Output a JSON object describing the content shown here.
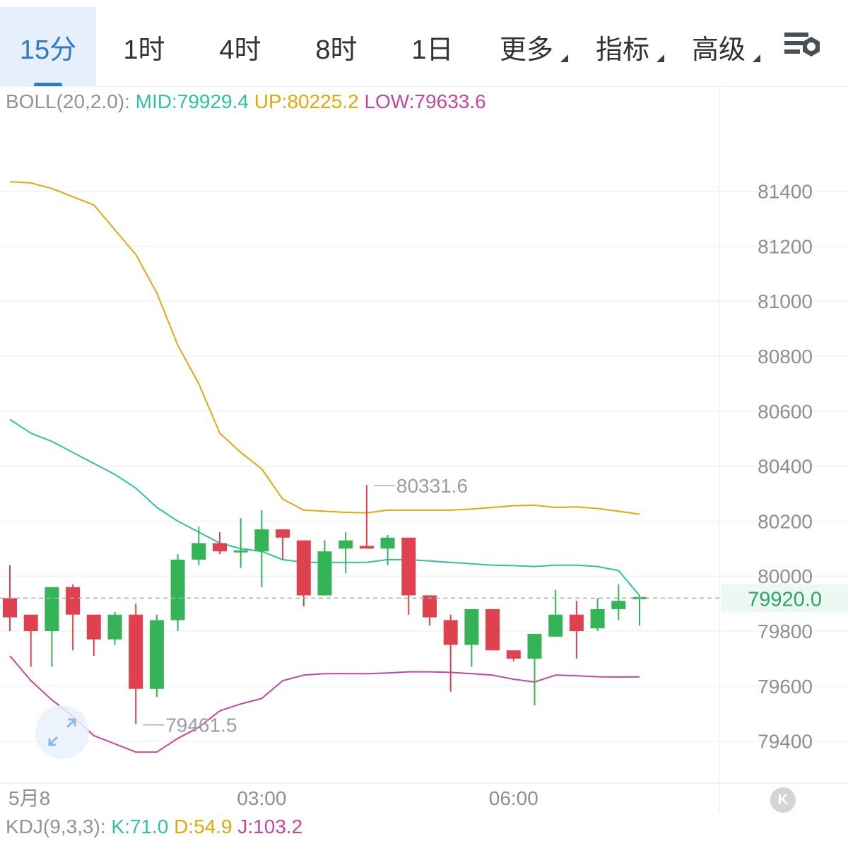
{
  "tabs": [
    {
      "label": "15分",
      "active": true
    },
    {
      "label": "1时",
      "active": false
    },
    {
      "label": "4时",
      "active": false
    },
    {
      "label": "8时",
      "active": false
    },
    {
      "label": "1日",
      "active": false
    },
    {
      "label": "更多",
      "active": false,
      "dropdown": true
    },
    {
      "label": "指标",
      "active": false,
      "dropdown": true
    },
    {
      "label": "高级",
      "active": false,
      "dropdown": true
    }
  ],
  "settings_icon": "chart-settings-icon",
  "boll_legend": {
    "name": "BOLL(20,2.0):",
    "mid": "MID:79929.4",
    "up": "UP:80225.2",
    "low": "LOW:79633.6"
  },
  "kdj_legend": {
    "name": "KDJ(9,3,3):",
    "k": "K:71.0",
    "d": "D:54.9",
    "j": "J:103.2"
  },
  "colors": {
    "up_candle": "#34b357",
    "down_candle": "#e0414f",
    "mid_line": "#2fc1a8",
    "upper_band": "#e2a80c",
    "lower_band": "#c4469f",
    "active_tab": "#2b79d3"
  },
  "chart_data": {
    "type": "candlestick",
    "interval": "15分",
    "y_ticks": [
      81400,
      81200,
      81000,
      80800,
      80600,
      80400,
      80200,
      80000,
      79800,
      79600,
      79400
    ],
    "ylim": [
      79250,
      81620
    ],
    "x_labels": [
      {
        "label": "5月8",
        "index": -0.7
      },
      {
        "label": "03:00",
        "index": 12
      },
      {
        "label": "06:00",
        "index": 24
      }
    ],
    "current_price": "79920.0",
    "max_annotation": {
      "label": "80331.6",
      "value": 80331.6,
      "index": 17
    },
    "min_annotation": {
      "label": "79461.5",
      "value": 79461.5,
      "index": 6
    },
    "candles": [
      {
        "o": 79920,
        "h": 80040,
        "l": 79800,
        "c": 79850
      },
      {
        "o": 79860,
        "h": 79860,
        "l": 79670,
        "c": 79800
      },
      {
        "o": 79800,
        "h": 79960,
        "l": 79670,
        "c": 79960
      },
      {
        "o": 79960,
        "h": 79970,
        "l": 79730,
        "c": 79860
      },
      {
        "o": 79860,
        "h": 79860,
        "l": 79710,
        "c": 79770
      },
      {
        "o": 79770,
        "h": 79870,
        "l": 79750,
        "c": 79860
      },
      {
        "o": 79860,
        "h": 79900,
        "l": 79461.5,
        "c": 79590
      },
      {
        "o": 79590,
        "h": 79860,
        "l": 79560,
        "c": 79840
      },
      {
        "o": 79840,
        "h": 80080,
        "l": 79800,
        "c": 80060
      },
      {
        "o": 80060,
        "h": 80180,
        "l": 80040,
        "c": 80120
      },
      {
        "o": 80120,
        "h": 80160,
        "l": 80080,
        "c": 80090
      },
      {
        "o": 80090,
        "h": 80210,
        "l": 80030,
        "c": 80090
      },
      {
        "o": 80090,
        "h": 80240,
        "l": 79960,
        "c": 80170
      },
      {
        "o": 80170,
        "h": 80170,
        "l": 80060,
        "c": 80140
      },
      {
        "o": 80130,
        "h": 80130,
        "l": 79890,
        "c": 79930
      },
      {
        "o": 79930,
        "h": 80130,
        "l": 79930,
        "c": 80090
      },
      {
        "o": 80100,
        "h": 80160,
        "l": 80010,
        "c": 80130
      },
      {
        "o": 80110,
        "h": 80331.6,
        "l": 80100,
        "c": 80100
      },
      {
        "o": 80100,
        "h": 80150,
        "l": 80040,
        "c": 80140
      },
      {
        "o": 80140,
        "h": 80140,
        "l": 79860,
        "c": 79930
      },
      {
        "o": 79930,
        "h": 79930,
        "l": 79820,
        "c": 79850
      },
      {
        "o": 79840,
        "h": 79860,
        "l": 79580,
        "c": 79750
      },
      {
        "o": 79750,
        "h": 79880,
        "l": 79670,
        "c": 79880
      },
      {
        "o": 79880,
        "h": 79880,
        "l": 79730,
        "c": 79730
      },
      {
        "o": 79730,
        "h": 79730,
        "l": 79690,
        "c": 79700
      },
      {
        "o": 79700,
        "h": 79790,
        "l": 79530,
        "c": 79790
      },
      {
        "o": 79780,
        "h": 79950,
        "l": 79780,
        "c": 79860
      },
      {
        "o": 79860,
        "h": 79910,
        "l": 79700,
        "c": 79800
      },
      {
        "o": 79810,
        "h": 79920,
        "l": 79800,
        "c": 79880
      },
      {
        "o": 79880,
        "h": 79970,
        "l": 79840,
        "c": 79910
      },
      {
        "o": 79920,
        "h": 79930,
        "l": 79820,
        "c": 79920
      }
    ],
    "series": [
      {
        "name": "UP",
        "values": [
          81435,
          81430,
          81410,
          81380,
          81350,
          81260,
          81170,
          81030,
          80840,
          80700,
          80520,
          80450,
          80390,
          80280,
          80240,
          80236,
          80232,
          80230,
          80240,
          80240,
          80240,
          80240,
          80244,
          80250,
          80256,
          80258,
          80250,
          80252,
          80246,
          80236,
          80225.2
        ]
      },
      {
        "name": "MID",
        "values": [
          80570,
          80520,
          80490,
          80450,
          80410,
          80370,
          80320,
          80250,
          80200,
          80160,
          80120,
          80100,
          80090,
          80060,
          80050,
          80050,
          80050,
          80050,
          80060,
          80060,
          80055,
          80050,
          80045,
          80040,
          80038,
          80035,
          80040,
          80040,
          80035,
          80020,
          79929.4
        ]
      },
      {
        "name": "LOW",
        "values": [
          79710,
          79620,
          79550,
          79490,
          79420,
          79390,
          79360,
          79360,
          79410,
          79450,
          79510,
          79535,
          79555,
          79620,
          79640,
          79645,
          79645,
          79645,
          79648,
          79652,
          79652,
          79650,
          79645,
          79640,
          79625,
          79615,
          79640,
          79638,
          79634,
          79633,
          79633.6
        ]
      }
    ]
  }
}
